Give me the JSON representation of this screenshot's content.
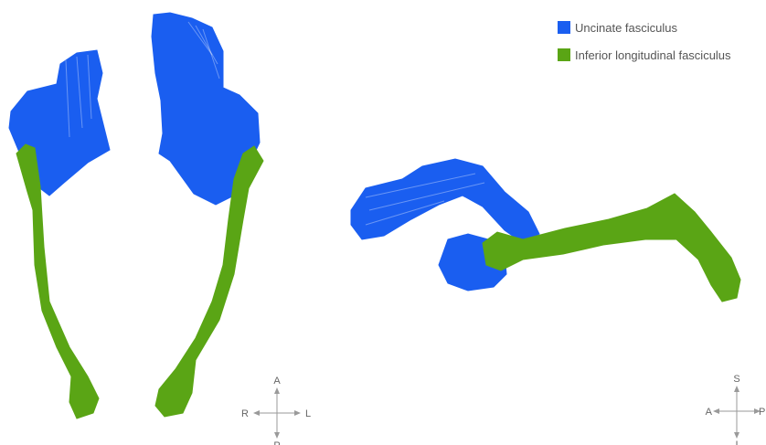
{
  "legend": {
    "items": [
      {
        "label": "Uncinate fasciculus",
        "color": "#1a5ef0"
      },
      {
        "label": "Inferior longitudinal fasciculus",
        "color": "#5aa515"
      }
    ]
  },
  "compass_axial": {
    "top": "A",
    "left": "R",
    "right": "L",
    "bottom": "P"
  },
  "compass_sagittal": {
    "top": "S",
    "left": "A",
    "right": "P",
    "bottom": "I"
  },
  "colors": {
    "uncinate": "#1a5ef0",
    "ilf": "#5aa515",
    "arrow": "#9a9a9a"
  }
}
